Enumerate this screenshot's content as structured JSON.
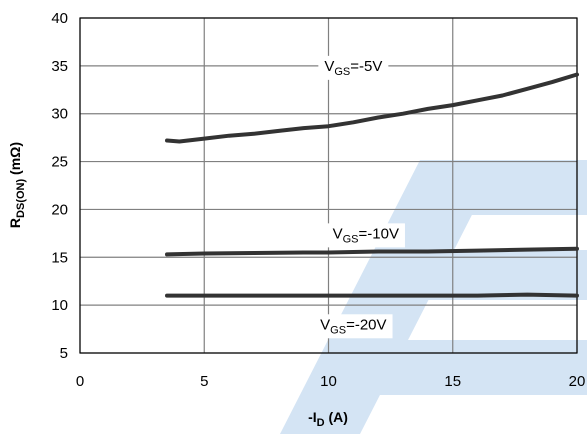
{
  "chart_data": {
    "type": "line",
    "title": "",
    "xlabel": {
      "main": "-I",
      "sub": "D",
      "unit": " (A)"
    },
    "ylabel": {
      "main": "R",
      "sub": "DS(ON)",
      "unit": " (mΩ)"
    },
    "xlim": [
      0,
      20
    ],
    "ylim": [
      5,
      40
    ],
    "x_ticks": [
      "0",
      "5",
      "10",
      "15",
      "20"
    ],
    "y_ticks": [
      "5",
      "10",
      "15",
      "20",
      "25",
      "30",
      "35",
      "40"
    ],
    "grid": true,
    "legend": "none",
    "colors": {
      "line": "#333333",
      "grid": "#808080",
      "watermark": "#d4e4f4",
      "label_bg": "#ffffff"
    },
    "series": [
      {
        "label": {
          "main": "V",
          "sub": "GS",
          "value": "=-5V"
        },
        "label_at": {
          "x": 11,
          "y": 35
        },
        "x": [
          3.5,
          4,
          5,
          6,
          7,
          8,
          9,
          10,
          11,
          12,
          13,
          14,
          15,
          16,
          17,
          18,
          19,
          20
        ],
        "values": [
          27.2,
          27.1,
          27.4,
          27.7,
          27.9,
          28.2,
          28.5,
          28.7,
          29.1,
          29.6,
          30.0,
          30.5,
          30.9,
          31.4,
          31.9,
          32.6,
          33.3,
          34.1
        ]
      },
      {
        "label": {
          "main": "V",
          "sub": "GS",
          "value": "=-10V"
        },
        "label_at": {
          "x": 11.5,
          "y": 17.5
        },
        "x": [
          3.5,
          5,
          7,
          9,
          10,
          12,
          14,
          16,
          18,
          20
        ],
        "values": [
          15.3,
          15.4,
          15.45,
          15.5,
          15.5,
          15.6,
          15.6,
          15.7,
          15.8,
          15.9
        ]
      },
      {
        "label": {
          "main": "V",
          "sub": "GS",
          "value": "=-20V"
        },
        "label_at": {
          "x": 11,
          "y": 8
        },
        "x": [
          3.5,
          5,
          8,
          10,
          12,
          14,
          16,
          17,
          18,
          20
        ],
        "values": [
          11.0,
          11.0,
          11.0,
          11.0,
          11.0,
          11.0,
          11.0,
          11.05,
          11.1,
          11.0
        ]
      }
    ]
  }
}
